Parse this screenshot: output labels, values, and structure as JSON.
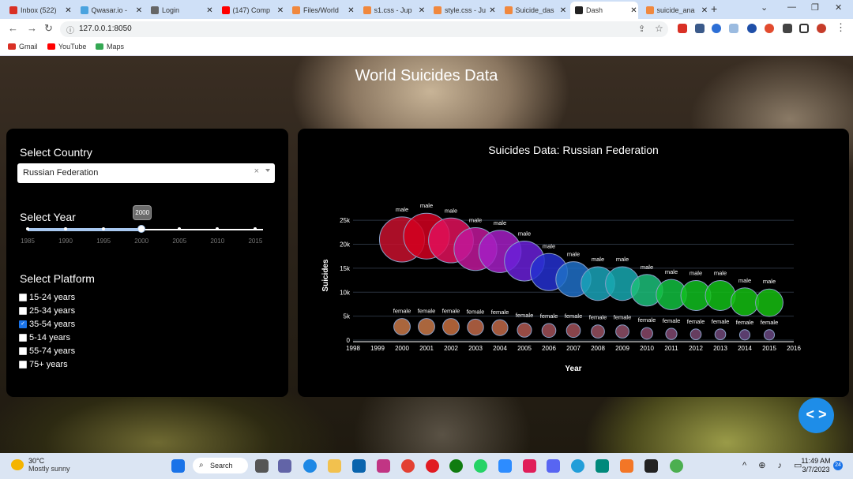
{
  "browser": {
    "tabs": [
      {
        "title": "Inbox (522)",
        "color": "#d93025"
      },
      {
        "title": "Qwasar.io -",
        "color": "#4aa3df"
      },
      {
        "title": "Login",
        "color": "#666666"
      },
      {
        "title": "(147) Comp",
        "color": "#ff0000"
      },
      {
        "title": "Files/World",
        "color": "#f0883e"
      },
      {
        "title": "s1.css - Jup",
        "color": "#f0883e"
      },
      {
        "title": "style.css - Ju",
        "color": "#f0883e"
      },
      {
        "title": "Suicide_das",
        "color": "#f0883e"
      },
      {
        "title": "Dash",
        "color": "#222222"
      },
      {
        "title": "suicide_ana",
        "color": "#f0883e"
      }
    ],
    "active_tab": 8,
    "url": "127.0.0.1:8050",
    "bookmarks": [
      {
        "label": "Gmail",
        "color": "#d93025"
      },
      {
        "label": "YouTube",
        "color": "#ff0000"
      },
      {
        "label": "Maps",
        "color": "#34a853"
      }
    ]
  },
  "page": {
    "title": "World Suicides Data",
    "country_label": "Select Country",
    "country_value": "Russian Federation",
    "clear_glyph": "×",
    "year_label": "Select Year",
    "year_value": 2000,
    "year_marks": [
      1985,
      1990,
      1995,
      2000,
      2005,
      2010,
      2015
    ],
    "year_min": 1985,
    "year_max": 2016,
    "platform_label": "Select Platform",
    "platforms": [
      {
        "label": "15-24 years",
        "checked": false
      },
      {
        "label": "25-34 years",
        "checked": false
      },
      {
        "label": "35-54 years",
        "checked": true
      },
      {
        "label": "5-14 years",
        "checked": false
      },
      {
        "label": "55-74 years",
        "checked": false
      },
      {
        "label": "75+ years",
        "checked": false
      }
    ],
    "fab_glyph": "< >"
  },
  "chart_data": {
    "type": "scatter",
    "title": "Suicides Data: Russian Federation",
    "xlabel": "Year",
    "ylabel": "Suicides",
    "xlim": [
      1998,
      2016
    ],
    "ylim": [
      0,
      27000
    ],
    "x_ticks": [
      1998,
      1999,
      2000,
      2001,
      2002,
      2003,
      2004,
      2005,
      2006,
      2007,
      2008,
      2009,
      2010,
      2011,
      2012,
      2013,
      2014,
      2015,
      2016
    ],
    "y_ticks": [
      0,
      5000,
      10000,
      15000,
      20000,
      25000
    ],
    "y_tick_labels": [
      "0",
      "5k",
      "10k",
      "15k",
      "20k",
      "25k"
    ],
    "grid": true,
    "legend": "none",
    "series": [
      {
        "point_label": "male",
        "x": [
          2000,
          2001,
          2002,
          2003,
          2004,
          2005,
          2006,
          2007,
          2008,
          2009,
          2010,
          2011,
          2012,
          2013,
          2014,
          2015
        ],
        "y": [
          21000,
          21700,
          20800,
          19000,
          18500,
          16500,
          14200,
          12700,
          11800,
          11800,
          10400,
          9500,
          9300,
          9300,
          8000,
          7800
        ],
        "colors": [
          "#c8102e",
          "#d40020",
          "#e0105a",
          "#c0189a",
          "#a41ec4",
          "#6a20d8",
          "#2530d0",
          "#2070c8",
          "#1aa3b8",
          "#18a8b0",
          "#1cbf7a",
          "#12c040",
          "#10c020",
          "#12c018",
          "#14c012",
          "#16c010"
        ]
      },
      {
        "point_label": "female",
        "x": [
          2000,
          2001,
          2002,
          2003,
          2004,
          2005,
          2006,
          2007,
          2008,
          2009,
          2010,
          2011,
          2012,
          2013,
          2014,
          2015
        ],
        "y": [
          2800,
          2800,
          2800,
          2700,
          2600,
          2100,
          2000,
          2000,
          1800,
          1800,
          1400,
          1300,
          1200,
          1200,
          1100,
          1100
        ],
        "colors": [
          "#c87848",
          "#c87848",
          "#c87040",
          "#c06848",
          "#c06848",
          "#b05850",
          "#a05058",
          "#a05058",
          "#985060",
          "#905068",
          "#884868",
          "#804870",
          "#784870",
          "#704878",
          "#6a4880",
          "#684880"
        ]
      }
    ]
  }
}
